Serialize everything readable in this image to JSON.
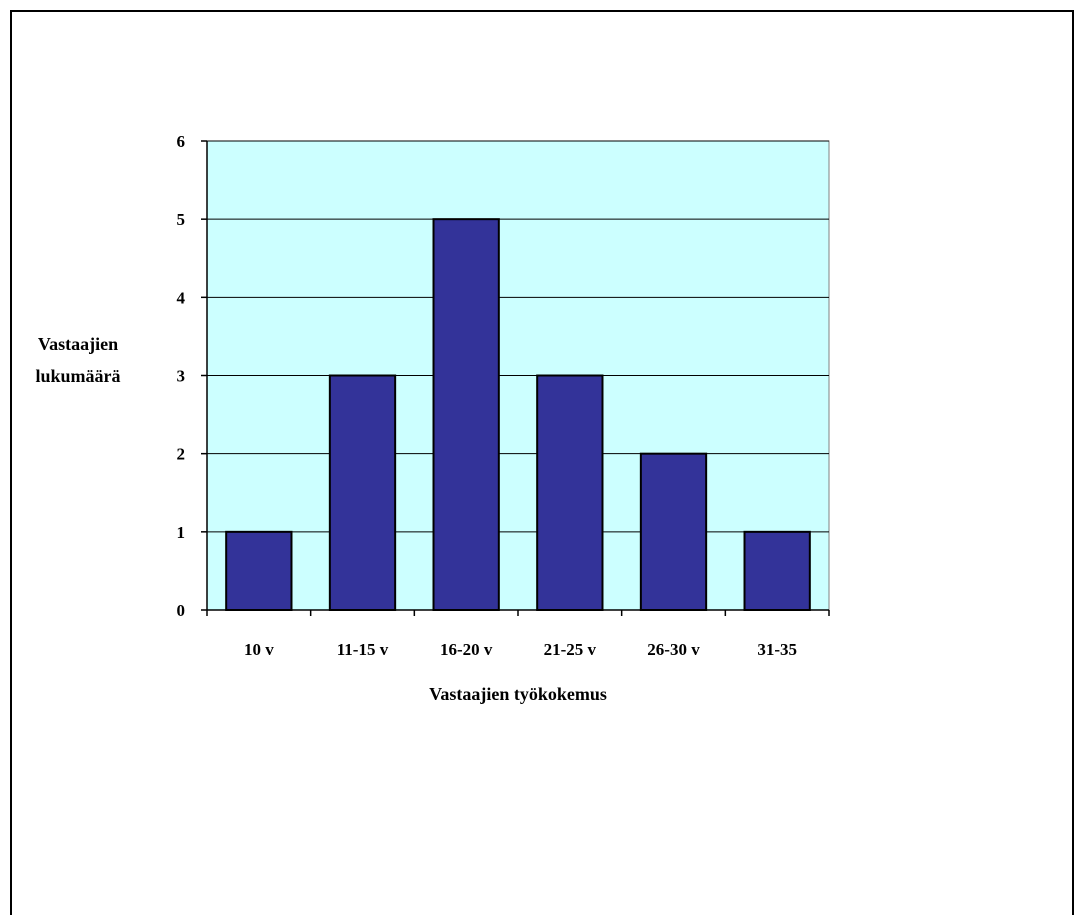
{
  "chart_data": {
    "type": "bar",
    "categories": [
      "10 v",
      "11-15 v",
      "16-20 v",
      "21-25 v",
      "26-30 v",
      "31-35"
    ],
    "values": [
      1,
      3,
      5,
      3,
      2,
      1
    ],
    "xlabel": "Vastaajien työkokemus",
    "ylabel": [
      "Vastaajien",
      "lukumäärä"
    ],
    "ylim": [
      0,
      6
    ],
    "yticks": [
      0,
      1,
      2,
      3,
      4,
      5,
      6
    ],
    "grid": true,
    "legend": "none",
    "colors": {
      "bar": "#333399",
      "plot_bg": "#CCFFFF",
      "grid": "#000000"
    }
  }
}
